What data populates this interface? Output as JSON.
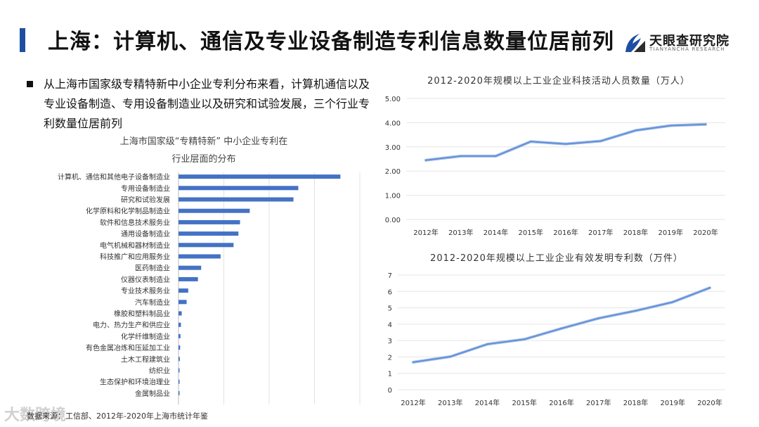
{
  "header": {
    "title": "上海：计算机、通信及专业设备制造专利信息数量位居前列",
    "logo_cn": "天眼查研究院",
    "logo_en": "TIANYANCHA RESEARCH"
  },
  "intro": {
    "text": "从上海市国家级专精特新中小企业专利分布来看，计算机通信以及专业设备制造、专用设备制造业以及研究和试验发展，三个行业专利数量位居前列"
  },
  "footer": {
    "source": "数据来源：工信部、2012年-2020年上海市统计年鉴",
    "watermark": "大数跨境"
  },
  "colors": {
    "accent": "#1f4fa3",
    "bar": "#4472c4",
    "line": "#5b8bd6"
  },
  "chart_data": [
    {
      "type": "bar",
      "orientation": "horizontal",
      "title_line1": "上海市国家级“专精特新” 中小企业专利在",
      "title_line2": "行业层面的分布",
      "categories": [
        "计算机、通信和其他电子设备制造业",
        "专用设备制造业",
        "研究和试验发展",
        "化学原料和化学制品制造业",
        "软件和信息技术服务业",
        "通用设备制造业",
        "电气机械和器材制造业",
        "科技推广和应用服务业",
        "医药制造业",
        "仪器仪表制造业",
        "专业技术服务业",
        "汽车制造业",
        "橡胶和塑料制品业",
        "电力、热力生产和供应业",
        "化学纤维制造业",
        "有色金属冶炼和压延加工业",
        "土木工程建筑业",
        "纺织业",
        "生态保护和环境治理业",
        "金属制品业"
      ],
      "values": [
        100,
        74,
        71,
        44,
        38,
        37,
        34,
        26,
        14,
        12,
        6,
        5,
        2,
        1.5,
        1.2,
        1,
        0.8,
        0.6,
        0.5,
        0.4
      ],
      "xlim": [
        0,
        112
      ]
    },
    {
      "type": "line",
      "title": "2012-2020年规模以上工业企业科技活动人员数量（万人）",
      "categories": [
        "2012年",
        "2013年",
        "2014年",
        "2015年",
        "2016年",
        "2017年",
        "2018年",
        "2019年",
        "2020年"
      ],
      "values": [
        2.45,
        2.62,
        2.62,
        3.22,
        3.12,
        3.24,
        3.68,
        3.88,
        3.93
      ],
      "ylim": [
        0,
        5
      ],
      "yticks": [
        "0.00",
        "1.00",
        "2.00",
        "3.00",
        "4.00",
        "5.00"
      ]
    },
    {
      "type": "line",
      "title": "2012-2020年规模以上工业企业有效发明专利数（万件）",
      "categories": [
        "2012年",
        "2013年",
        "2014年",
        "2015年",
        "2016年",
        "2017年",
        "2018年",
        "2019年",
        "2020年"
      ],
      "values": [
        1.68,
        2.02,
        2.78,
        3.08,
        3.74,
        4.36,
        4.82,
        5.35,
        6.22
      ],
      "ylim": [
        0,
        7
      ],
      "yticks": [
        "0",
        "1",
        "2",
        "3",
        "4",
        "5",
        "6",
        "7"
      ]
    }
  ]
}
